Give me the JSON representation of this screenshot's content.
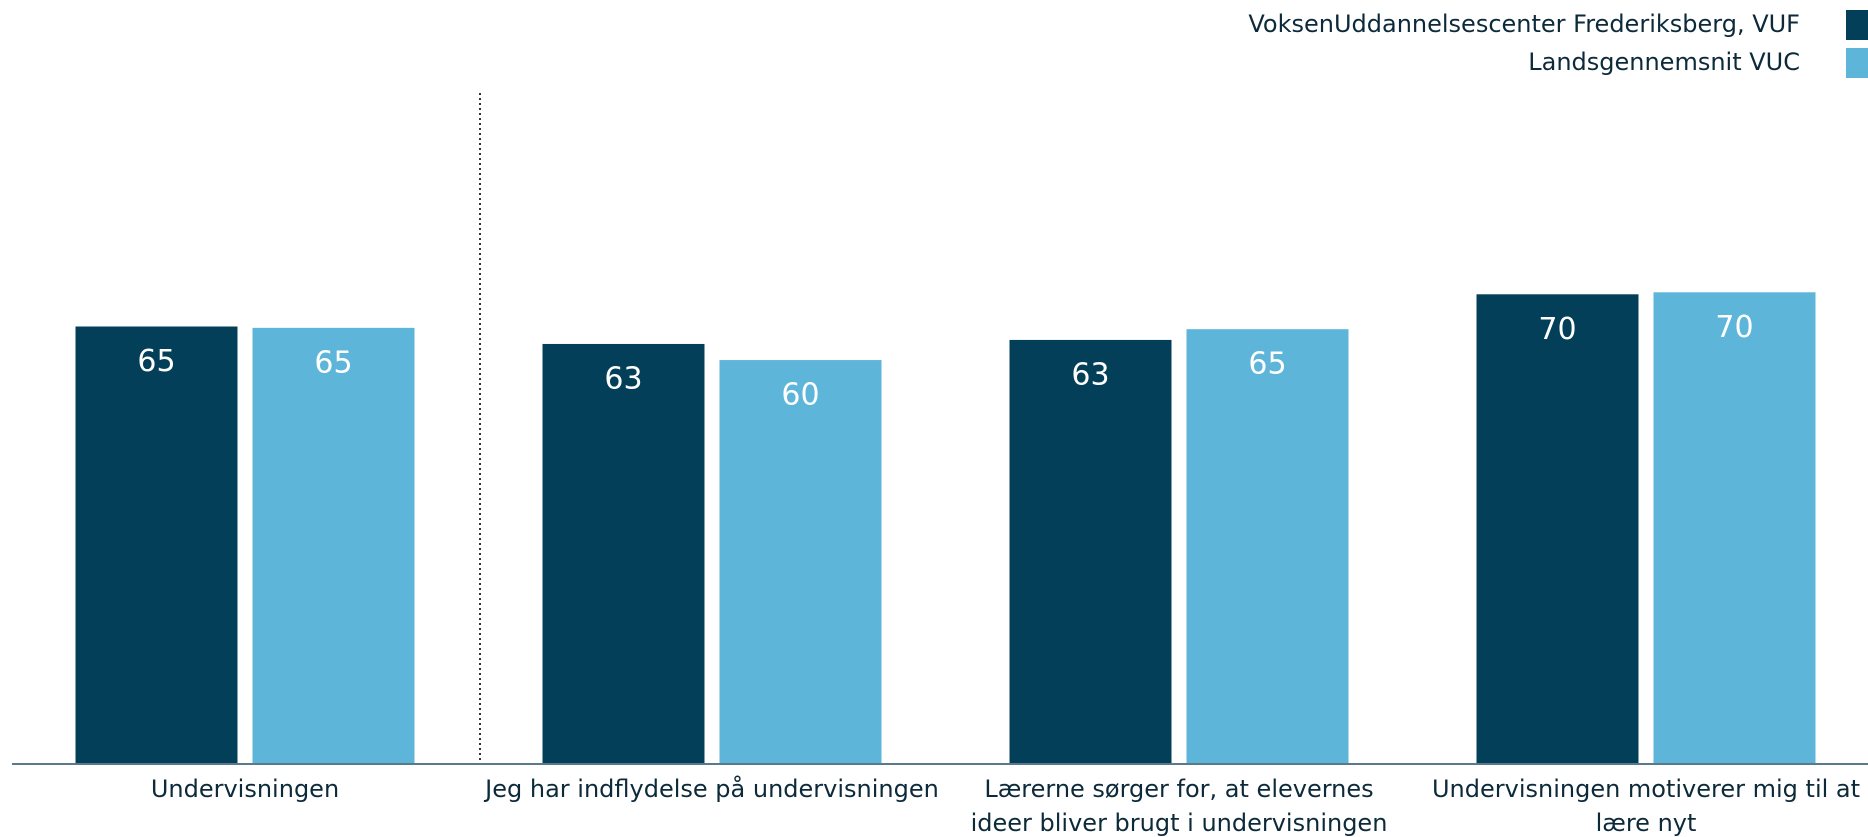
{
  "chart_data": {
    "type": "bar",
    "categories": [
      "Undervisningen",
      "Jeg har indflydelse på undervisningen",
      "Lærerne sørger for, at elevernes ideer bliver brugt i undervisningen",
      "Undervisningen motiverer mig til at lære nyt"
    ],
    "series": [
      {
        "name": "VoksenUddannelsescenter Frederiksberg, VUF",
        "color": "#033f58",
        "values": [
          65.2,
          62.6,
          63.2,
          70.0
        ],
        "value_labels": [
          "65",
          "63",
          "63",
          "70"
        ]
      },
      {
        "name": "Landsgennemsnit VUC",
        "color": "#5eb5da",
        "values": [
          65.0,
          60.2,
          64.8,
          70.3
        ],
        "value_labels": [
          "65",
          "60",
          "65",
          "70"
        ]
      }
    ],
    "ylim": [
      0,
      100
    ],
    "legend": "top-right"
  }
}
